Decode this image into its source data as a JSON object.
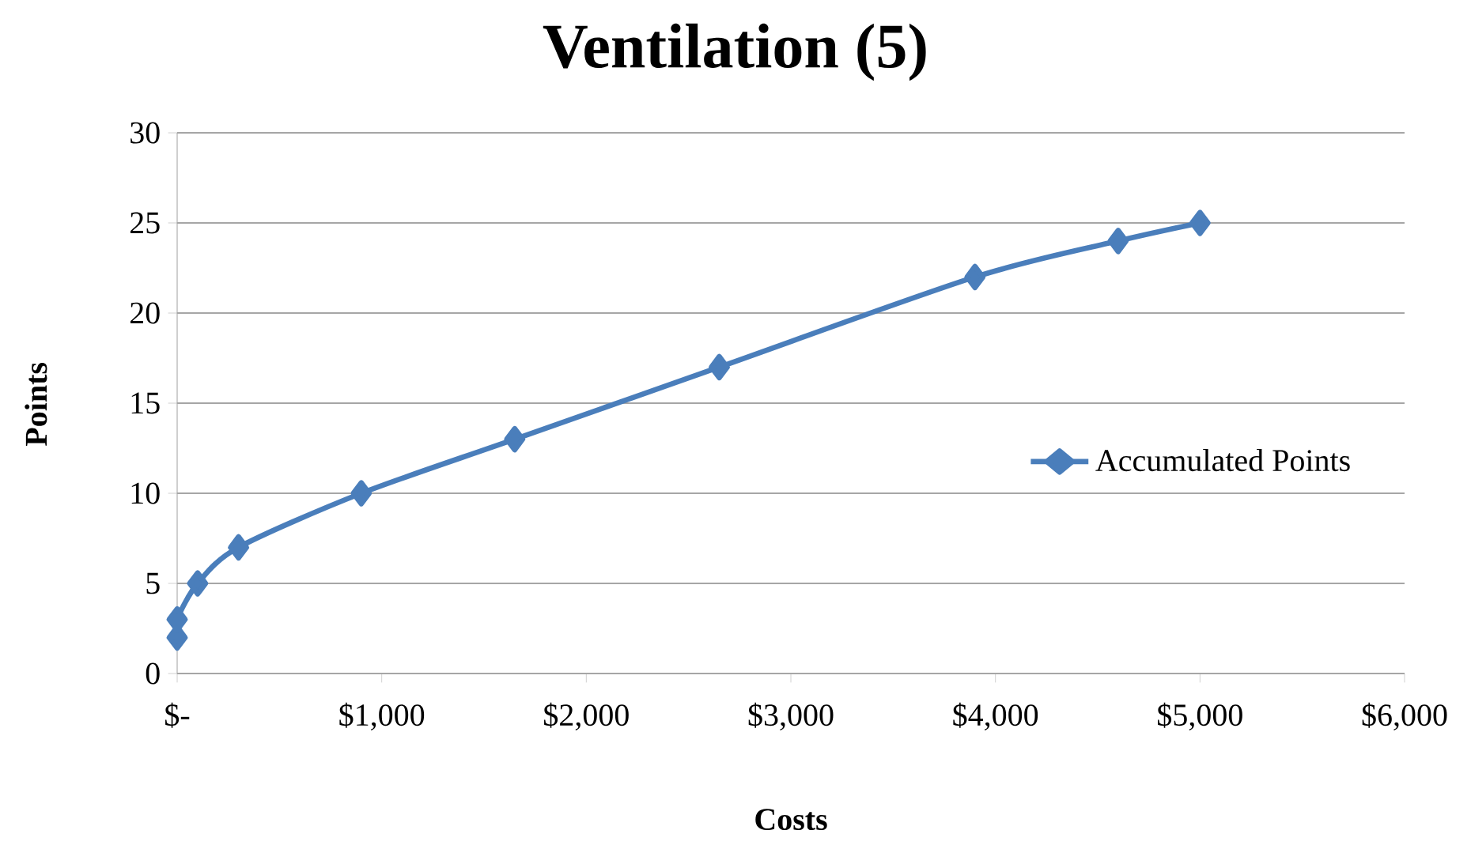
{
  "chart_data": {
    "type": "line",
    "title": "Ventilation (5)",
    "xlabel": "Costs",
    "ylabel": "Points",
    "x": [
      0,
      0,
      100,
      300,
      900,
      1650,
      2650,
      3900,
      4600,
      5000
    ],
    "series": [
      {
        "name": "Accumulated Points",
        "color": "#4a7ebb",
        "values": [
          2,
          3,
          5,
          7,
          10,
          13,
          17,
          22,
          24,
          25
        ]
      }
    ],
    "xlim": [
      0,
      6000
    ],
    "ylim": [
      0,
      30
    ],
    "xticks": [
      {
        "value": 0,
        "label": "$-"
      },
      {
        "value": 1000,
        "label": "$1,000"
      },
      {
        "value": 2000,
        "label": "$2,000"
      },
      {
        "value": 3000,
        "label": "$3,000"
      },
      {
        "value": 4000,
        "label": "$4,000"
      },
      {
        "value": 5000,
        "label": "$5,000"
      },
      {
        "value": 6000,
        "label": "$6,000"
      }
    ],
    "yticks": [
      0,
      5,
      10,
      15,
      20,
      25,
      30
    ],
    "grid": "y",
    "legend": "right",
    "marker": "diamond",
    "line_style": "solid"
  }
}
